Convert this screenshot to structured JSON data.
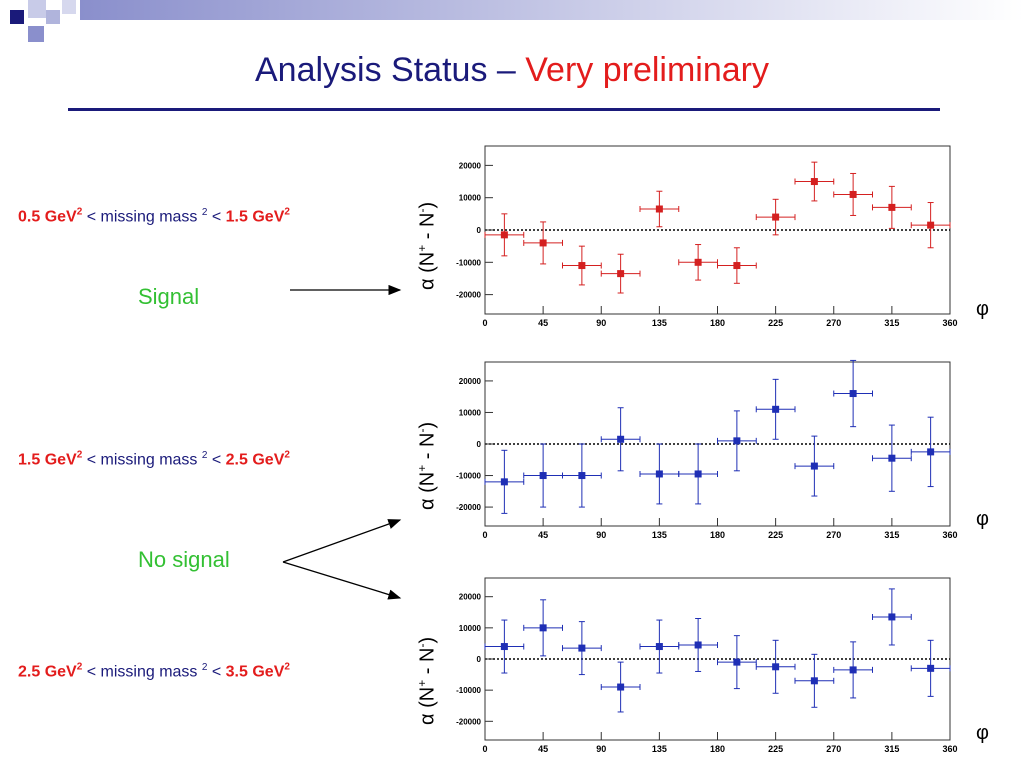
{
  "slide": {
    "title_main": "Analysis Status – ",
    "title_highlight": "Very preliminary",
    "colors": {
      "title": "#1a1a7a",
      "highlight": "#e31c1c",
      "label": "#33c033"
    }
  },
  "ranges": [
    {
      "lo": "0.5 GeV",
      "mid": "< missing mass ",
      "hi": "1.5 GeV",
      "sup": "2"
    },
    {
      "lo": "1.5 GeV",
      "mid": "< missing mass ",
      "hi": "2.5 GeV",
      "sup": "2"
    },
    {
      "lo": "2.5 GeV",
      "mid": "< missing mass ",
      "hi": "3.5 GeV",
      "sup": "2"
    }
  ],
  "labels": {
    "signal": "Signal",
    "no_signal": "No signal"
  },
  "axis": {
    "x_label": "φ",
    "y_label_main": "α (N",
    "y_sup1": "+",
    "y_mid": " - N",
    "y_sup2": "-",
    "y_close": ")"
  },
  "chart_data": [
    {
      "type": "scatter",
      "color": "#d42020",
      "x": [
        15,
        45,
        75,
        105,
        135,
        165,
        195,
        225,
        255,
        285,
        315,
        345
      ],
      "y": [
        -1500,
        -4000,
        -11000,
        -13500,
        6500,
        -10000,
        -11000,
        4000,
        15000,
        11000,
        7000,
        1500
      ],
      "yerr": [
        6500,
        6500,
        6000,
        6000,
        5500,
        5500,
        5500,
        5500,
        6000,
        6500,
        6500,
        7000
      ],
      "xerr": 15,
      "xlim": [
        0,
        360
      ],
      "ylim": [
        -26000,
        26000
      ],
      "xticks": [
        0,
        45,
        90,
        135,
        180,
        225,
        270,
        315,
        360
      ],
      "yticks": [
        -20000,
        -10000,
        0,
        10000,
        20000
      ],
      "zero_line": "dotted"
    },
    {
      "type": "scatter",
      "color": "#1f2fb5",
      "x": [
        15,
        45,
        75,
        105,
        135,
        165,
        195,
        225,
        255,
        285,
        315,
        345
      ],
      "y": [
        -12000,
        -10000,
        -10000,
        1500,
        -9500,
        -9500,
        1000,
        11000,
        -7000,
        16000,
        -4500,
        -2500
      ],
      "yerr": [
        10000,
        10000,
        10000,
        10000,
        9500,
        9500,
        9500,
        9500,
        9500,
        10500,
        10500,
        11000
      ],
      "xerr": 15,
      "xlim": [
        0,
        360
      ],
      "ylim": [
        -26000,
        26000
      ],
      "xticks": [
        0,
        45,
        90,
        135,
        180,
        225,
        270,
        315,
        360
      ],
      "yticks": [
        -20000,
        -10000,
        0,
        10000,
        20000
      ],
      "zero_line": "dotted"
    },
    {
      "type": "scatter",
      "color": "#1f2fb5",
      "x": [
        15,
        45,
        75,
        105,
        135,
        165,
        195,
        225,
        255,
        285,
        315,
        345
      ],
      "y": [
        4000,
        10000,
        3500,
        -9000,
        4000,
        4500,
        -1000,
        -2500,
        -7000,
        -3500,
        13500,
        -3000
      ],
      "yerr": [
        8500,
        9000,
        8500,
        8000,
        8500,
        8500,
        8500,
        8500,
        8500,
        9000,
        9000,
        9000
      ],
      "xerr": 15,
      "xlim": [
        0,
        360
      ],
      "ylim": [
        -26000,
        26000
      ],
      "xticks": [
        0,
        45,
        90,
        135,
        180,
        225,
        270,
        315,
        360
      ],
      "yticks": [
        -20000,
        -10000,
        0,
        10000,
        20000
      ],
      "zero_line": "dotted"
    }
  ]
}
